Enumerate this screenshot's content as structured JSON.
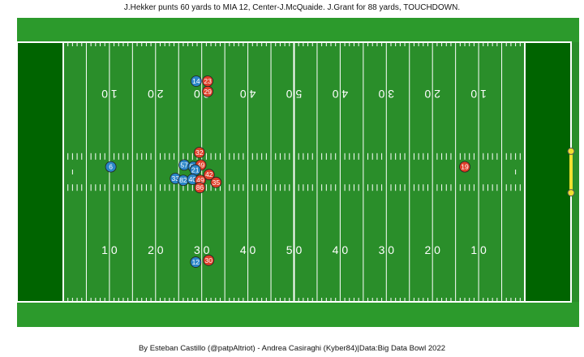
{
  "play": {
    "description": "J.Hekker punts 60 yards to MIA 12, Center-J.McQuaide. J.Grant for 88 yards, TOUCHDOWN."
  },
  "credit": "By Esteban Castillo (@patpAltriot) - Andrea Casiraghi (Kyber84)|Data:Big Data Bowl 2022",
  "colors": {
    "outer": "#2c9a2c",
    "field": "#2a8e2a",
    "endzone": "#006400",
    "lines": "#ffffff",
    "goalpost": "#f0e030",
    "home_team": "#e0402a",
    "away_team": "#2a86c8"
  },
  "field_numbers": {
    "top": [
      "1 0",
      "2 0",
      "3 0",
      "4 0",
      "5 0",
      "4 0",
      "3 0",
      "2 0",
      "1 0"
    ],
    "bottom": [
      "1 0",
      "2 0",
      "3 0",
      "4 0",
      "5 0",
      "4 0",
      "3 0",
      "2 0",
      "1 0"
    ]
  },
  "players": [
    {
      "jersey": "14",
      "team": "away",
      "yard": 28.8,
      "lat": 0.85
    },
    {
      "jersey": "23",
      "team": "home",
      "yard": 31.3,
      "lat": 0.85
    },
    {
      "jersey": "29",
      "team": "home",
      "yard": 31.3,
      "lat": 0.81
    },
    {
      "jersey": "32",
      "team": "home",
      "yard": 29.5,
      "lat": 0.575
    },
    {
      "jersey": "6",
      "team": "away",
      "yard": 10.3,
      "lat": 0.52
    },
    {
      "jersey": "57",
      "team": "away",
      "yard": 26.2,
      "lat": 0.527
    },
    {
      "jersey": "58",
      "team": "away",
      "yard": 28.2,
      "lat": 0.52
    },
    {
      "jersey": "49",
      "team": "home",
      "yard": 29.8,
      "lat": 0.527
    },
    {
      "jersey": "21",
      "team": "away",
      "yard": 28.6,
      "lat": 0.508
    },
    {
      "jersey": "42",
      "team": "home",
      "yard": 31.6,
      "lat": 0.49
    },
    {
      "jersey": "33",
      "team": "away",
      "yard": 24.3,
      "lat": 0.475
    },
    {
      "jersey": "82",
      "team": "away",
      "yard": 26.0,
      "lat": 0.468
    },
    {
      "jersey": "40",
      "team": "away",
      "yard": 28.0,
      "lat": 0.472
    },
    {
      "jersey": "49",
      "team": "home",
      "yard": 29.7,
      "lat": 0.468
    },
    {
      "jersey": "35",
      "team": "home",
      "yard": 33.1,
      "lat": 0.46
    },
    {
      "jersey": "86",
      "team": "home",
      "yard": 29.6,
      "lat": 0.44
    },
    {
      "jersey": "19",
      "team": "home",
      "yard": 87.0,
      "lat": 0.52
    },
    {
      "jersey": "12",
      "team": "away",
      "yard": 28.7,
      "lat": 0.153
    },
    {
      "jersey": "30",
      "team": "home",
      "yard": 31.5,
      "lat": 0.16
    }
  ]
}
